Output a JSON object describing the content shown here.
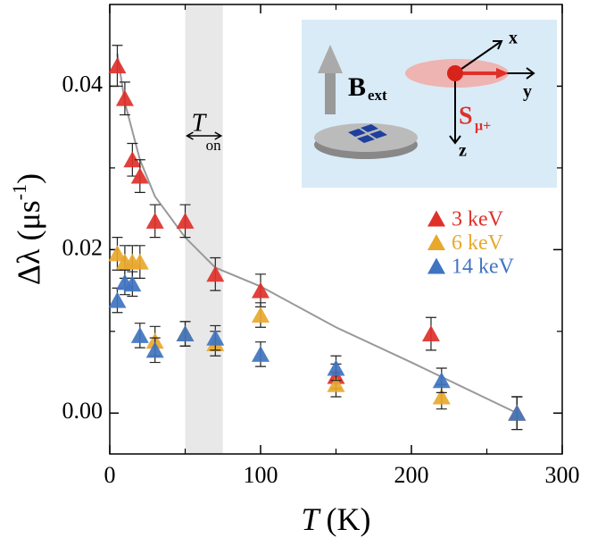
{
  "chart_data": {
    "type": "scatter",
    "xlabel": {
      "var": "T",
      "unit": "(K)"
    },
    "ylabel": {
      "text": "Δλ (μs",
      "sup": "-1",
      "close": ")"
    },
    "xlim": [
      0,
      300
    ],
    "ylim": [
      -0.005,
      0.05
    ],
    "xticks": [
      0,
      100,
      200,
      300
    ],
    "yticks": [
      {
        "value": 0,
        "label": "0.00"
      },
      0.02,
      0.04
    ],
    "xminorticks": [
      50,
      150,
      250
    ],
    "yminorticks": [
      0.01,
      0.03
    ],
    "legend": "upper right",
    "shaded_region": {
      "x": [
        50,
        75
      ],
      "color": "#e8e8e8",
      "label": "T",
      "label_sub": "on"
    },
    "curve": {
      "color": "#999999",
      "x": [
        5,
        10,
        20,
        30,
        50,
        70,
        100,
        150,
        200,
        270
      ],
      "y": [
        0.044,
        0.038,
        0.031,
        0.0265,
        0.0215,
        0.0178,
        0.0155,
        0.0105,
        0.0062,
        0
      ]
    },
    "series": [
      {
        "name": "3 keV",
        "color": "#e0302a",
        "x": [
          5,
          10,
          15,
          20,
          30,
          50,
          70,
          100,
          150,
          213,
          270
        ],
        "values": [
          0.0425,
          0.0385,
          0.031,
          0.029,
          0.0235,
          0.0235,
          0.017,
          0.015,
          0.0045,
          0.0097,
          0
        ],
        "errors": [
          0.0025,
          0.002,
          0.002,
          0.002,
          0.002,
          0.002,
          0.002,
          0.002,
          0.0015,
          0.002,
          0.002
        ]
      },
      {
        "name": "6 keV",
        "color": "#e8a82c",
        "x": [
          5,
          10,
          15,
          20,
          30,
          50,
          70,
          100,
          150,
          220,
          270
        ],
        "values": [
          0.0195,
          0.0185,
          0.0185,
          0.0185,
          0.0088,
          0.0097,
          0.0085,
          0.012,
          0.0035,
          0.002,
          0
        ],
        "errors": [
          0.002,
          0.002,
          0.002,
          0.002,
          0.0018,
          0.0015,
          0.0015,
          0.0015,
          0.0015,
          0.0015,
          0.002
        ]
      },
      {
        "name": "14 keV",
        "color": "#3f74c0",
        "x": [
          5,
          10,
          15,
          20,
          30,
          50,
          70,
          100,
          150,
          220,
          270
        ],
        "values": [
          0.0138,
          0.016,
          0.0158,
          0.0095,
          0.0077,
          0.0097,
          0.0092,
          0.0072,
          0.0055,
          0.004,
          0
        ],
        "errors": [
          0.0015,
          0.0015,
          0.0015,
          0.0015,
          0.0015,
          0.0015,
          0.0015,
          0.0015,
          0.0015,
          0.0015,
          0.002
        ]
      }
    ],
    "inset": {
      "field": "B",
      "field_sub": "ext",
      "spin": "S",
      "spin_sub": "μ+",
      "axis_x": "x",
      "axis_y": "y",
      "axis_z": "z"
    }
  }
}
